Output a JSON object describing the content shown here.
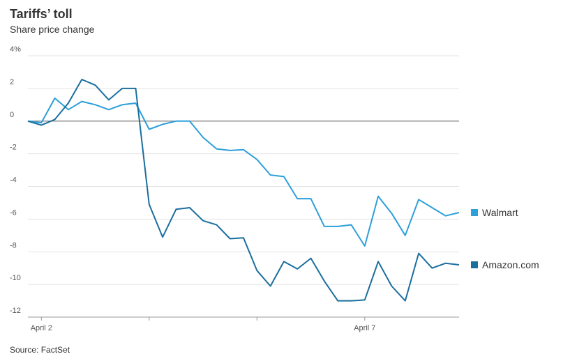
{
  "chart_data": {
    "type": "line",
    "title": "Tariffs’ toll",
    "subtitle": "Share price change",
    "source": "Source: FactSet",
    "categories": [
      null,
      "April 2",
      null,
      null,
      null,
      null,
      null,
      null,
      null,
      null,
      null,
      null,
      null,
      null,
      null,
      null,
      null,
      null,
      null,
      null,
      null,
      null,
      null,
      null,
      null,
      "April 7",
      null,
      null,
      null,
      null,
      null,
      null,
      null
    ],
    "series": [
      {
        "name": "Walmart",
        "color": "#2d9fd9",
        "values": [
          0,
          -0.1,
          1.4,
          0.7,
          1.2,
          1.0,
          0.7,
          1.0,
          1.1,
          -0.5,
          -0.2,
          0.0,
          0.0,
          -1.0,
          -1.7,
          -1.8,
          -1.75,
          -2.35,
          -3.3,
          -3.4,
          -4.75,
          -4.75,
          -6.45,
          -6.45,
          -6.35,
          -7.65,
          -4.6,
          -5.65,
          -7.0,
          -4.8,
          -5.3,
          -5.8,
          -5.6
        ]
      },
      {
        "name": "Amazon.com",
        "color": "#1a6e9e",
        "values": [
          0,
          -0.25,
          0.1,
          1.1,
          2.55,
          2.2,
          1.3,
          2.0,
          2.0,
          -5.1,
          -7.1,
          -5.4,
          -5.3,
          -6.1,
          -6.35,
          -7.2,
          -7.15,
          -9.15,
          -10.1,
          -8.6,
          -9.05,
          -8.4,
          -9.8,
          -11.0,
          -11.0,
          -10.95,
          -8.6,
          -10.1,
          -11.0,
          -8.1,
          -9.0,
          -8.7,
          -8.8
        ]
      }
    ],
    "ylim": [
      -12,
      4
    ],
    "yticks": [
      {
        "value": 4,
        "label": "4%"
      },
      2,
      0,
      -2,
      -4,
      -6,
      -8,
      -10,
      -12
    ],
    "grid": true
  }
}
